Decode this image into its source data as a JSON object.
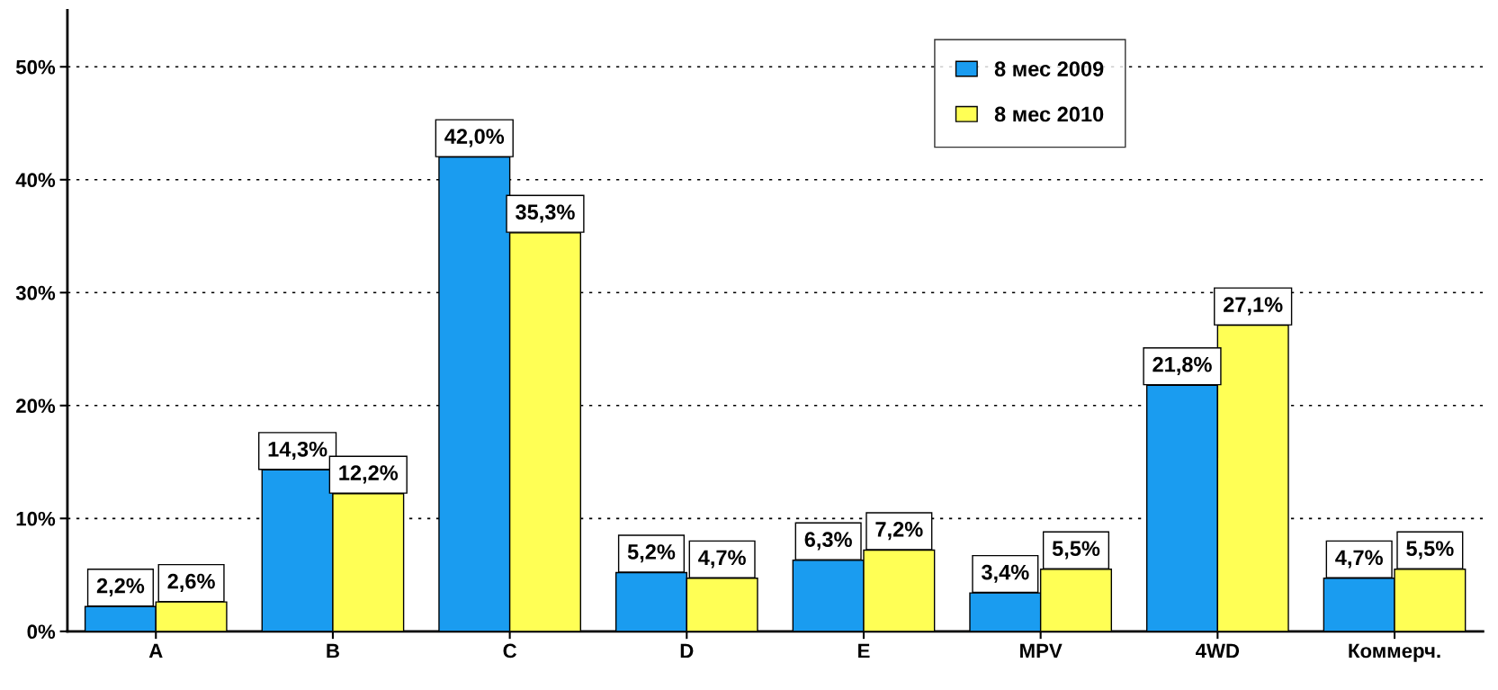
{
  "chart_data": {
    "type": "bar",
    "categories": [
      "A",
      "B",
      "C",
      "D",
      "E",
      "MPV",
      "4WD",
      "Коммерч."
    ],
    "series": [
      {
        "name": "8 мес 2009",
        "color": "#1a9cf0",
        "values": [
          2.2,
          14.3,
          42.0,
          5.2,
          6.3,
          3.4,
          21.8,
          4.7
        ],
        "value_labels": [
          "2,2%",
          "14,3%",
          "42,0%",
          "5,2%",
          "6,3%",
          "3,4%",
          "21,8%",
          "4,7%"
        ]
      },
      {
        "name": "8 мес 2010",
        "color": "#ffff55",
        "values": [
          2.6,
          12.2,
          35.3,
          4.7,
          7.2,
          5.5,
          27.1,
          5.5
        ],
        "value_labels": [
          "2,6%",
          "12,2%",
          "35,3%",
          "4,7%",
          "7,2%",
          "5,5%",
          "27,1%",
          "5,5%"
        ]
      }
    ],
    "ylim": [
      0,
      55
    ],
    "yticks": [
      {
        "value": 0,
        "label": "0%"
      },
      {
        "value": 10,
        "label": "10%"
      },
      {
        "value": 20,
        "label": "20%"
      },
      {
        "value": 30,
        "label": "30%"
      },
      {
        "value": 40,
        "label": "40%"
      },
      {
        "value": 50,
        "label": "50%"
      }
    ],
    "grid": "y",
    "legend": "top"
  }
}
